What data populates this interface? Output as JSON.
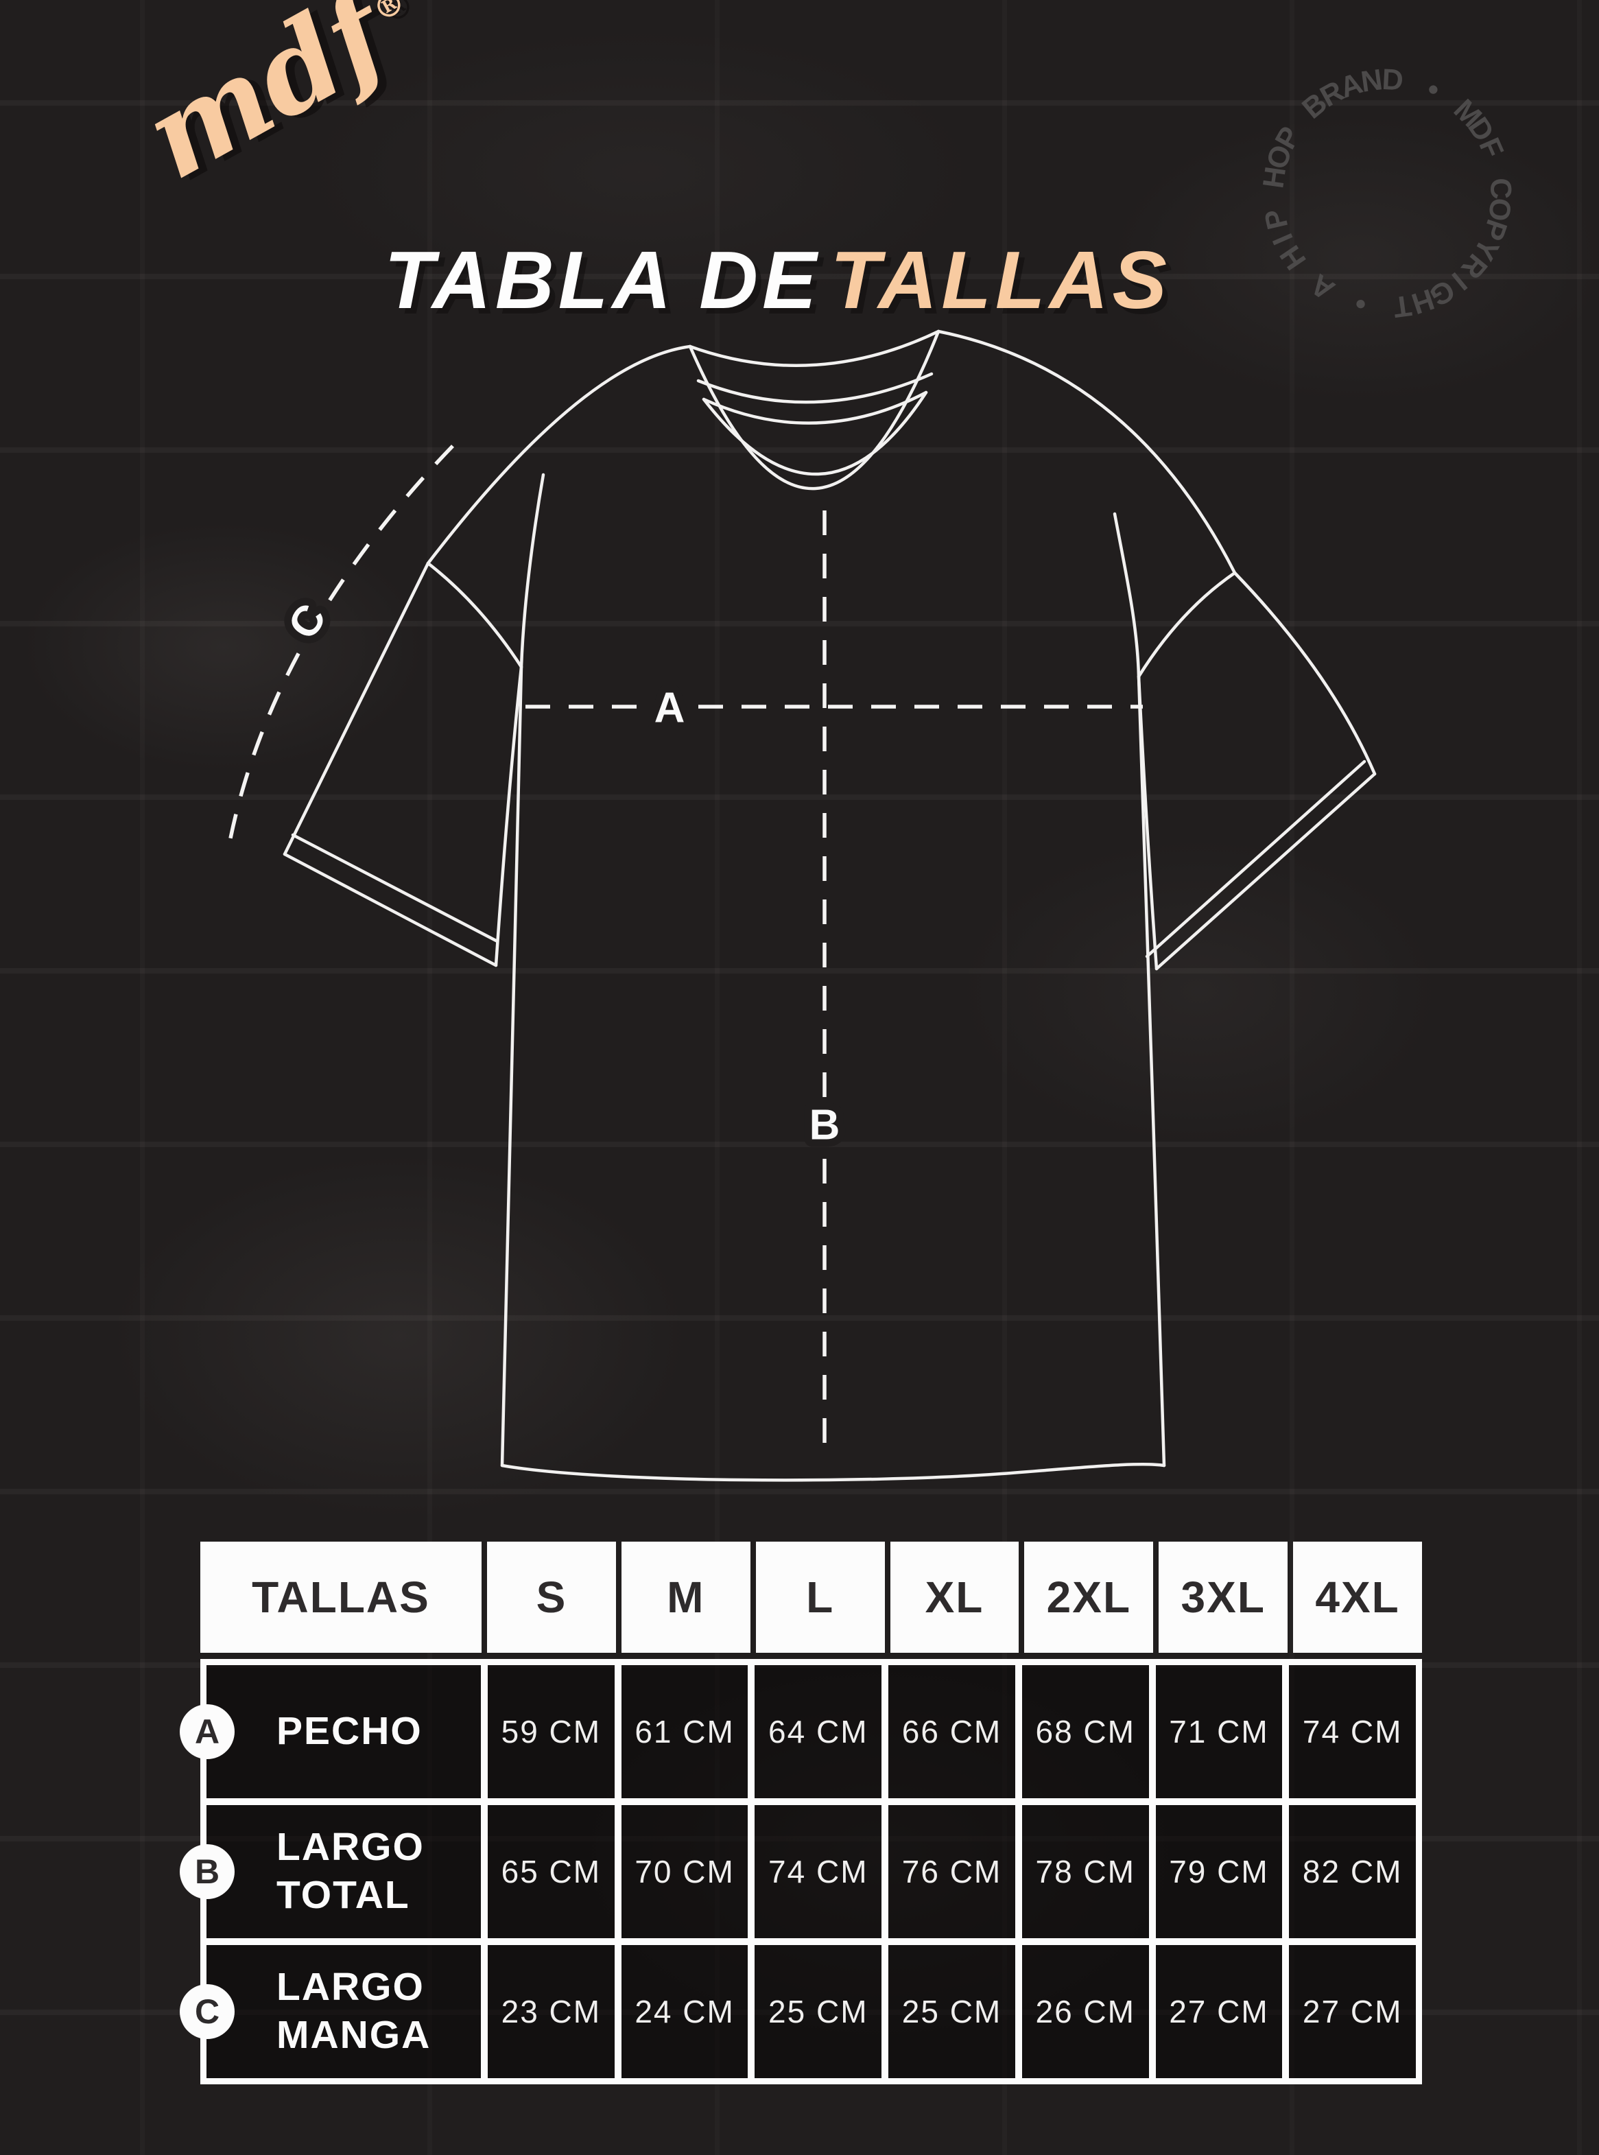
{
  "brand": {
    "logo_text": "mdf",
    "registered": "®"
  },
  "title": {
    "prefix": "TABLA DE",
    "highlight": "TALLAS"
  },
  "stamp": {
    "text": "A HIP HOP BRAND • MDF COPYRIGHT • "
  },
  "diagram": {
    "measure_labels": [
      "A",
      "B",
      "C"
    ]
  },
  "table": {
    "header": [
      "TALLAS",
      "S",
      "M",
      "L",
      "XL",
      "2XL",
      "3XL",
      "4XL"
    ],
    "rows": [
      {
        "badge": "A",
        "label_lines": [
          "PECHO"
        ],
        "values": [
          "59 CM",
          "61 CM",
          "64 CM",
          "66 CM",
          "68 CM",
          "71 CM",
          "74 CM"
        ]
      },
      {
        "badge": "B",
        "label_lines": [
          "LARGO",
          "TOTAL"
        ],
        "values": [
          "65 CM",
          "70 CM",
          "74 CM",
          "76 CM",
          "78 CM",
          "79 CM",
          "82 CM"
        ]
      },
      {
        "badge": "C",
        "label_lines": [
          "LARGO",
          "MANGA"
        ],
        "values": [
          "23 CM",
          "24 CM",
          "25 CM",
          "25 CM",
          "26 CM",
          "27 CM",
          "27 CM"
        ]
      }
    ]
  },
  "colors": {
    "background": "#211e1e",
    "accent_peach": "#f8cba1",
    "line_white": "#f2f1f0",
    "stamp_gray": "#4c4a4a",
    "table_text_dark": "#2e2b2c"
  }
}
